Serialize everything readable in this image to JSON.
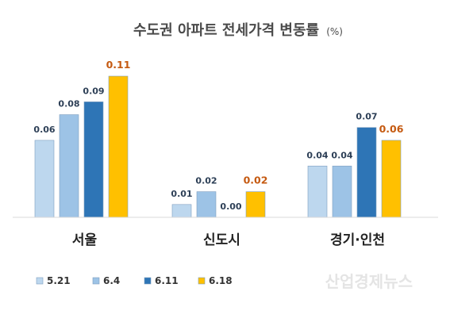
{
  "chart_data": {
    "type": "bar",
    "title": "수도권 아파트 전세가격 변동률",
    "unit": "(%)",
    "categories": [
      "서울",
      "신도시",
      "경기·인천"
    ],
    "series": [
      {
        "name": "5.21",
        "color": "#bdd7ee",
        "label_color": "#2e4057",
        "values": [
          0.06,
          0.01,
          0.04
        ]
      },
      {
        "name": "6.4",
        "color": "#9dc3e6",
        "label_color": "#2e4057",
        "values": [
          0.08,
          0.02,
          0.04
        ]
      },
      {
        "name": "6.11",
        "color": "#2e75b6",
        "label_color": "#2e4057",
        "values": [
          0.09,
          0.0,
          0.07
        ]
      },
      {
        "name": "6.18",
        "color": "#ffc000",
        "label_color": "#c55a11",
        "values": [
          0.11,
          0.02,
          0.06
        ]
      }
    ],
    "value_labels": [
      [
        "0.06",
        "0.01",
        "0.04"
      ],
      [
        "0.08",
        "0.02",
        "0.04"
      ],
      [
        "0.09",
        "0.00",
        "0.07"
      ],
      [
        "0.11",
        "0.02",
        "0.06"
      ]
    ],
    "ylim": [
      0,
      0.12
    ],
    "grid": false,
    "legend_position": "bottom-left"
  },
  "watermark": "산업경제뉴스"
}
